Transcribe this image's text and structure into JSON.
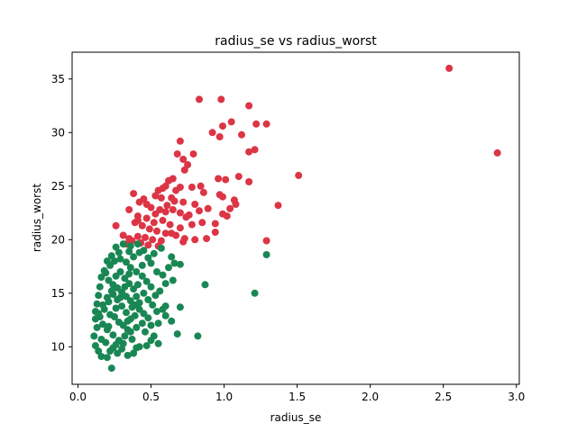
{
  "chart_data": {
    "type": "scatter",
    "title": "radius_se vs radius_worst",
    "xlabel": "radius_se",
    "ylabel": "radius_worst",
    "xlim": [
      -0.04,
      3.02
    ],
    "ylim": [
      6.5,
      37.5
    ],
    "xticks": [
      "0.0",
      "0.5",
      "1.0",
      "1.5",
      "2.0",
      "2.5",
      "3.0"
    ],
    "yticks": [
      "10",
      "15",
      "20",
      "25",
      "30",
      "35"
    ],
    "grid": false,
    "legend": "none",
    "series": [
      {
        "color": "#dc3545",
        "points": [
          [
            2.54,
            36.0
          ],
          [
            2.87,
            28.1
          ],
          [
            0.83,
            33.1
          ],
          [
            0.98,
            33.1
          ],
          [
            1.17,
            32.5
          ],
          [
            1.05,
            31.0
          ],
          [
            1.22,
            30.8
          ],
          [
            1.29,
            30.8
          ],
          [
            0.99,
            30.6
          ],
          [
            0.92,
            30.0
          ],
          [
            1.12,
            29.8
          ],
          [
            0.97,
            29.6
          ],
          [
            0.7,
            29.2
          ],
          [
            1.21,
            28.4
          ],
          [
            1.17,
            28.2
          ],
          [
            0.79,
            28.0
          ],
          [
            0.68,
            28.0
          ],
          [
            0.72,
            27.5
          ],
          [
            0.75,
            27.0
          ],
          [
            0.73,
            26.5
          ],
          [
            1.51,
            26.0
          ],
          [
            1.1,
            25.9
          ],
          [
            0.96,
            25.7
          ],
          [
            1.01,
            25.6
          ],
          [
            1.17,
            25.4
          ],
          [
            0.65,
            25.7
          ],
          [
            0.62,
            25.5
          ],
          [
            0.6,
            25.0
          ],
          [
            0.58,
            24.8
          ],
          [
            0.55,
            24.6
          ],
          [
            0.7,
            24.9
          ],
          [
            0.67,
            24.6
          ],
          [
            0.78,
            24.9
          ],
          [
            0.84,
            25.0
          ],
          [
            0.86,
            24.4
          ],
          [
            0.38,
            24.3
          ],
          [
            0.53,
            24.1
          ],
          [
            0.57,
            23.9
          ],
          [
            0.64,
            23.9
          ],
          [
            0.72,
            23.5
          ],
          [
            0.8,
            23.3
          ],
          [
            0.97,
            24.2
          ],
          [
            0.99,
            24.0
          ],
          [
            1.07,
            23.7
          ],
          [
            1.37,
            23.2
          ],
          [
            0.45,
            23.8
          ],
          [
            0.42,
            23.5
          ],
          [
            0.47,
            23.3
          ],
          [
            0.5,
            23.0
          ],
          [
            0.56,
            22.8
          ],
          [
            0.6,
            22.6
          ],
          [
            0.65,
            22.8
          ],
          [
            0.7,
            22.5
          ],
          [
            0.76,
            22.3
          ],
          [
            0.83,
            22.7
          ],
          [
            0.89,
            22.9
          ],
          [
            1.04,
            22.9
          ],
          [
            1.08,
            23.3
          ],
          [
            0.35,
            22.8
          ],
          [
            0.41,
            22.2
          ],
          [
            0.47,
            22.0
          ],
          [
            0.52,
            21.6
          ],
          [
            0.58,
            21.8
          ],
          [
            0.63,
            21.4
          ],
          [
            0.7,
            21.1
          ],
          [
            0.78,
            21.4
          ],
          [
            0.85,
            21.6
          ],
          [
            0.94,
            21.5
          ],
          [
            0.99,
            22.4
          ],
          [
            1.02,
            22.2
          ],
          [
            0.39,
            21.6
          ],
          [
            0.44,
            21.3
          ],
          [
            0.49,
            21.0
          ],
          [
            0.54,
            20.8
          ],
          [
            0.6,
            20.6
          ],
          [
            0.67,
            20.4
          ],
          [
            0.73,
            20.1
          ],
          [
            0.8,
            20.0
          ],
          [
            0.88,
            20.1
          ],
          [
            0.26,
            21.3
          ],
          [
            0.31,
            20.4
          ],
          [
            0.35,
            20.1
          ],
          [
            0.41,
            20.3
          ],
          [
            0.46,
            20.2
          ],
          [
            0.51,
            20.0
          ],
          [
            0.57,
            19.9
          ],
          [
            0.64,
            20.6
          ],
          [
            0.72,
            19.8
          ],
          [
            1.29,
            19.9
          ],
          [
            0.94,
            20.7
          ],
          [
            0.33,
            19.6
          ],
          [
            0.37,
            19.9
          ],
          [
            0.43,
            19.7
          ],
          [
            0.48,
            19.5
          ],
          [
            0.55,
            19.4
          ],
          [
            0.41,
            21.8
          ],
          [
            0.53,
            22.4
          ],
          [
            0.61,
            23.2
          ],
          [
            0.66,
            23.6
          ],
          [
            0.74,
            22.1
          ]
        ]
      },
      {
        "color": "#198754",
        "points": [
          [
            1.29,
            18.6
          ],
          [
            1.21,
            15.0
          ],
          [
            0.87,
            15.8
          ],
          [
            0.82,
            11.0
          ],
          [
            0.7,
            13.7
          ],
          [
            0.68,
            11.2
          ],
          [
            0.64,
            12.4
          ],
          [
            0.64,
            18.4
          ],
          [
            0.66,
            17.8
          ],
          [
            0.57,
            19.2
          ],
          [
            0.62,
            17.4
          ],
          [
            0.58,
            16.7
          ],
          [
            0.54,
            17.0
          ],
          [
            0.5,
            17.8
          ],
          [
            0.48,
            18.3
          ],
          [
            0.45,
            19.0
          ],
          [
            0.41,
            19.6
          ],
          [
            0.36,
            19.4
          ],
          [
            0.31,
            19.6
          ],
          [
            0.26,
            19.3
          ],
          [
            0.23,
            18.5
          ],
          [
            0.2,
            18.0
          ],
          [
            0.18,
            17.1
          ],
          [
            0.16,
            16.5
          ],
          [
            0.15,
            15.6
          ],
          [
            0.14,
            14.8
          ],
          [
            0.13,
            14.0
          ],
          [
            0.12,
            13.3
          ],
          [
            0.12,
            12.6
          ],
          [
            0.13,
            11.8
          ],
          [
            0.11,
            11.0
          ],
          [
            0.12,
            10.1
          ],
          [
            0.14,
            9.6
          ],
          [
            0.16,
            9.1
          ],
          [
            0.2,
            9.0
          ],
          [
            0.23,
            8.0
          ],
          [
            0.22,
            9.6
          ],
          [
            0.26,
            10.2
          ],
          [
            0.3,
            9.8
          ],
          [
            0.34,
            9.2
          ],
          [
            0.38,
            9.4
          ],
          [
            0.42,
            10.0
          ],
          [
            0.47,
            10.1
          ],
          [
            0.5,
            10.6
          ],
          [
            0.52,
            11.0
          ],
          [
            0.55,
            10.3
          ],
          [
            0.54,
            13.3
          ],
          [
            0.58,
            13.5
          ],
          [
            0.6,
            13.8
          ],
          [
            0.53,
            14.8
          ],
          [
            0.56,
            15.2
          ],
          [
            0.5,
            15.6
          ],
          [
            0.47,
            16.1
          ],
          [
            0.44,
            16.6
          ],
          [
            0.4,
            17.0
          ],
          [
            0.36,
            17.4
          ],
          [
            0.33,
            17.9
          ],
          [
            0.29,
            18.2
          ],
          [
            0.25,
            18.0
          ],
          [
            0.22,
            17.6
          ],
          [
            0.19,
            16.9
          ],
          [
            0.21,
            16.2
          ],
          [
            0.24,
            15.8
          ],
          [
            0.27,
            15.5
          ],
          [
            0.3,
            15.1
          ],
          [
            0.33,
            14.7
          ],
          [
            0.36,
            14.3
          ],
          [
            0.39,
            13.9
          ],
          [
            0.42,
            13.5
          ],
          [
            0.45,
            13.1
          ],
          [
            0.48,
            12.7
          ],
          [
            0.44,
            12.2
          ],
          [
            0.4,
            11.8
          ],
          [
            0.36,
            11.4
          ],
          [
            0.32,
            11.0
          ],
          [
            0.28,
            10.6
          ],
          [
            0.24,
            11.1
          ],
          [
            0.2,
            11.6
          ],
          [
            0.17,
            12.1
          ],
          [
            0.15,
            12.8
          ],
          [
            0.18,
            13.5
          ],
          [
            0.21,
            14.2
          ],
          [
            0.24,
            14.9
          ],
          [
            0.27,
            14.4
          ],
          [
            0.3,
            13.8
          ],
          [
            0.33,
            13.2
          ],
          [
            0.36,
            12.6
          ],
          [
            0.39,
            12.9
          ],
          [
            0.42,
            14.1
          ],
          [
            0.45,
            15.0
          ],
          [
            0.48,
            14.4
          ],
          [
            0.51,
            13.9
          ],
          [
            0.26,
            16.6
          ],
          [
            0.29,
            17.0
          ],
          [
            0.32,
            16.4
          ],
          [
            0.35,
            15.9
          ],
          [
            0.38,
            15.4
          ],
          [
            0.41,
            15.8
          ],
          [
            0.23,
            15.2
          ],
          [
            0.2,
            14.6
          ],
          [
            0.17,
            13.9
          ],
          [
            0.25,
            12.8
          ],
          [
            0.28,
            12.3
          ],
          [
            0.31,
            12.0
          ],
          [
            0.34,
            11.6
          ],
          [
            0.37,
            10.7
          ],
          [
            0.4,
            9.9
          ],
          [
            0.19,
            10.4
          ],
          [
            0.27,
            9.4
          ],
          [
            0.31,
            10.3
          ],
          [
            0.44,
            17.6
          ],
          [
            0.52,
            18.7
          ],
          [
            0.6,
            15.9
          ],
          [
            0.65,
            16.2
          ],
          [
            0.7,
            17.7
          ],
          [
            0.35,
            18.9
          ],
          [
            0.38,
            18.4
          ],
          [
            0.42,
            18.8
          ],
          [
            0.28,
            18.8
          ],
          [
            0.55,
            12.2
          ],
          [
            0.6,
            12.9
          ],
          [
            0.46,
            11.4
          ],
          [
            0.5,
            12.0
          ],
          [
            0.16,
            10.7
          ],
          [
            0.14,
            13.1
          ],
          [
            0.22,
            13.0
          ],
          [
            0.26,
            13.6
          ],
          [
            0.29,
            14.6
          ],
          [
            0.32,
            15.6
          ],
          [
            0.35,
            16.8
          ],
          [
            0.21,
            11.9
          ],
          [
            0.24,
            9.9
          ],
          [
            0.37,
            13.7
          ],
          [
            0.4,
            14.7
          ],
          [
            0.34,
            12.4
          ]
        ]
      }
    ]
  }
}
